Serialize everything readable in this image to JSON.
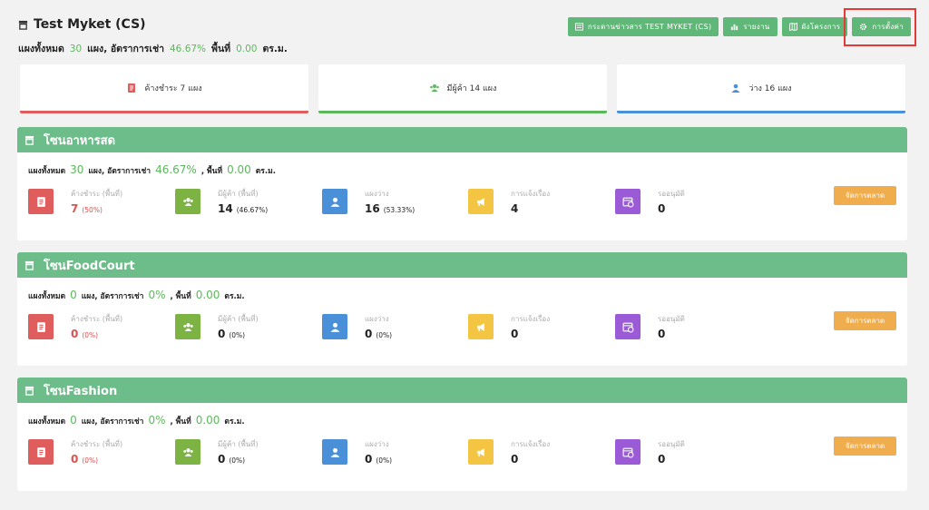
{
  "header": {
    "title": "Test Myket (CS)",
    "summary": {
      "total_label": "แผงทั้งหมด",
      "total_value": "30",
      "unit_label": "แผง, อัตราการเช่า",
      "rent_rate": "46.67%",
      "area_label": "พื้นที่",
      "area_value": "0.00",
      "area_unit": "ตร.ม."
    },
    "toolbar": {
      "bulletin_label": "กระดานข่าวสาร TEST MYKET (CS)",
      "report_label": "รายงาน",
      "layout_label": "ผังโครงการ",
      "settings_label": "การตั้งค่า"
    }
  },
  "stats": [
    {
      "label": "ค้างชำระ 7 แผง",
      "color": "#e05d5d",
      "icon": "file-icon"
    },
    {
      "label": "มีผู้ค้า 14 แผง",
      "color": "#5cb85c",
      "icon": "people-icon"
    },
    {
      "label": "ว่าง 16 แผง",
      "color": "#4a90d9",
      "icon": "person-icon"
    }
  ],
  "metric_labels": {
    "overdue": "ค้างชำระ (พื้นที่)",
    "occupied": "มีผู้ค้า (พื้นที่)",
    "vacant": "แผงว่าง",
    "complaints": "การแจ้งเรื่อง",
    "pending": "รออนุมัติ",
    "manage_button": "จัดการตลาด"
  },
  "zone_sum_labels": {
    "total": "แผงทั้งหมด",
    "rate": "แผง, อัตราการเช่า",
    "area": ", พื้นที่",
    "unit": "ตร.ม."
  },
  "zones": [
    {
      "name": "โซนอาหารสด",
      "total": "30",
      "rate": "46.67%",
      "area": "0.00",
      "overdue": "7",
      "overdue_pct": "(50%)",
      "occupied": "14",
      "occupied_pct": "(46.67%)",
      "vacant": "16",
      "vacant_pct": "(53.33%)",
      "complaints": "4",
      "pending": "0"
    },
    {
      "name": "โซนFoodCourt",
      "total": "0",
      "rate": "0%",
      "area": "0.00",
      "overdue": "0",
      "overdue_pct": "(0%)",
      "occupied": "0",
      "occupied_pct": "(0%)",
      "vacant": "0",
      "vacant_pct": "(0%)",
      "complaints": "0",
      "pending": "0"
    },
    {
      "name": "โซนFashion",
      "total": "0",
      "rate": "0%",
      "area": "0.00",
      "overdue": "0",
      "overdue_pct": "(0%)",
      "occupied": "0",
      "occupied_pct": "(0%)",
      "vacant": "0",
      "vacant_pct": "(0%)",
      "complaints": "0",
      "pending": "0"
    }
  ],
  "colors": {
    "green_header": "#6cbd89",
    "button_green": "#5fb878",
    "overdue_red": "#e05d5d",
    "occupied_green": "#7cb342",
    "vacant_blue": "#4a90d9",
    "complaint_yellow": "#f4c542",
    "pending_purple": "#9c5bd6",
    "manage_orange": "#f0ad4e",
    "highlight": "#e53935"
  }
}
